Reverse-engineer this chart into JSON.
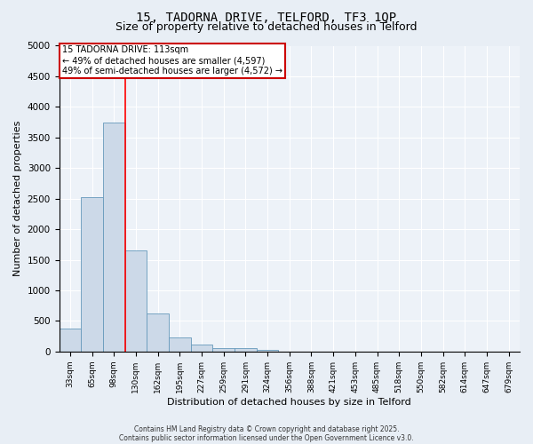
{
  "title1": "15, TADORNA DRIVE, TELFORD, TF3 1QP",
  "title2": "Size of property relative to detached houses in Telford",
  "xlabel": "Distribution of detached houses by size in Telford",
  "ylabel": "Number of detached properties",
  "bins": [
    "33sqm",
    "65sqm",
    "98sqm",
    "130sqm",
    "162sqm",
    "195sqm",
    "227sqm",
    "259sqm",
    "291sqm",
    "324sqm",
    "356sqm",
    "388sqm",
    "421sqm",
    "453sqm",
    "485sqm",
    "518sqm",
    "550sqm",
    "582sqm",
    "614sqm",
    "647sqm",
    "679sqm"
  ],
  "values": [
    380,
    2520,
    3750,
    1650,
    620,
    230,
    110,
    60,
    50,
    30,
    0,
    0,
    0,
    0,
    0,
    0,
    0,
    0,
    0,
    0,
    0
  ],
  "bar_color": "#ccd9e8",
  "bar_edge_color": "#6699bb",
  "red_line_x": 2.5,
  "ylim": [
    0,
    5000
  ],
  "yticks": [
    0,
    500,
    1000,
    1500,
    2000,
    2500,
    3000,
    3500,
    4000,
    4500,
    5000
  ],
  "annotation_text": "15 TADORNA DRIVE: 113sqm\n← 49% of detached houses are smaller (4,597)\n49% of semi-detached houses are larger (4,572) →",
  "annotation_box_color": "#ffffff",
  "annotation_box_edge": "#cc0000",
  "footer1": "Contains HM Land Registry data © Crown copyright and database right 2025.",
  "footer2": "Contains public sector information licensed under the Open Government Licence v3.0.",
  "bg_color": "#e8eef5",
  "plot_bg_color": "#edf2f8",
  "grid_color": "#ffffff",
  "title_fontsize": 10,
  "subtitle_fontsize": 9,
  "footer_fontsize": 5.5,
  "ylabel_fontsize": 8,
  "xlabel_fontsize": 8,
  "tick_fontsize": 6.5,
  "ytick_fontsize": 7.5
}
